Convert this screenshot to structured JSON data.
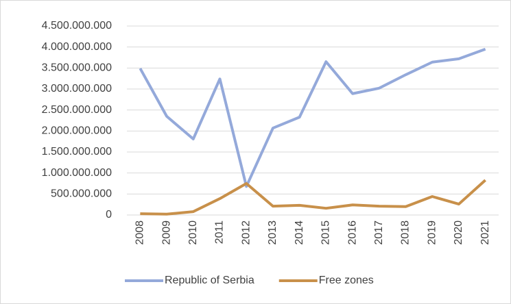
{
  "chart_data": {
    "type": "line",
    "categories": [
      "2008",
      "2009",
      "2010",
      "2011",
      "2012",
      "2013",
      "2014",
      "2015",
      "2016",
      "2017",
      "2018",
      "2019",
      "2020",
      "2021"
    ],
    "series": [
      {
        "name": "Republic of Serbia",
        "color": "#94a9da",
        "values": [
          3490000000,
          2350000000,
          1810000000,
          3240000000,
          680000000,
          2070000000,
          2330000000,
          3650000000,
          2890000000,
          3020000000,
          3340000000,
          3640000000,
          3720000000,
          3950000000
        ]
      },
      {
        "name": "Free zones",
        "color": "#c8904a",
        "values": [
          30000000,
          20000000,
          80000000,
          390000000,
          750000000,
          210000000,
          230000000,
          160000000,
          240000000,
          210000000,
          200000000,
          440000000,
          260000000,
          830000000
        ]
      }
    ],
    "ylim": [
      0,
      4500000000
    ],
    "yticks": [
      0,
      {
        "value": 500000000,
        "label": "500.000.000"
      },
      {
        "value": 1000000000,
        "label": "1.000.000.000"
      },
      {
        "value": 1500000000,
        "label": "1.500.000.000"
      },
      {
        "value": 2000000000,
        "label": "2.000.000.000"
      },
      {
        "value": 2500000000,
        "label": "2.500.000.000"
      },
      {
        "value": 3000000000,
        "label": "3.000.000.000"
      },
      {
        "value": 3500000000,
        "label": "3.500.000.000"
      },
      {
        "value": 4000000000,
        "label": "4.000.000.000"
      },
      {
        "value": 4500000000,
        "label": "4.500.000.000"
      }
    ],
    "grid": true,
    "legend": "bottom"
  }
}
